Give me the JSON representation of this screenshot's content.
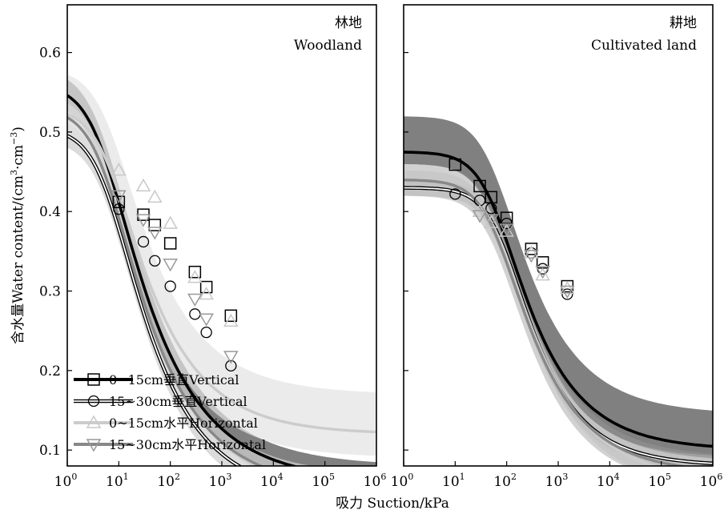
{
  "chart_data": [
    {
      "type": "line",
      "panel_label_cn": "林地",
      "panel_label_en": "Woodland",
      "xscale": "log",
      "xlim": [
        1,
        1000000
      ],
      "ylim": [
        0.08,
        0.66
      ],
      "series": [
        {
          "key": "a",
          "label": "0~15cm垂直Vertical",
          "color": "#000000",
          "stroke": "black",
          "marker": "square",
          "curve": {
            "theta_r": 0.06,
            "theta_s": 0.56,
            "alpha": 0.2,
            "n": 1.38
          },
          "band_color": "#555555",
          "band_opacity": 0.75,
          "band_low": 0.02,
          "band_high": 0.02,
          "band_start": "lower",
          "points": [
            {
              "x": 10,
              "y": 0.412
            },
            {
              "x": 30,
              "y": 0.396
            },
            {
              "x": 50,
              "y": 0.383
            },
            {
              "x": 100,
              "y": 0.36
            },
            {
              "x": 300,
              "y": 0.324
            },
            {
              "x": 500,
              "y": 0.305
            },
            {
              "x": 1500,
              "y": 0.269
            }
          ]
        },
        {
          "key": "b",
          "label": "15~30cm垂直Vertical",
          "color": "#000000",
          "stroke": "double",
          "marker": "circle",
          "curve": {
            "theta_r": 0.04,
            "theta_s": 0.505,
            "alpha": 0.16,
            "n": 1.42
          },
          "band_color": "#cccccc",
          "band_opacity": 0.7,
          "band_low": 0.015,
          "band_high": 0.015,
          "band_start": "lower",
          "points": [
            {
              "x": 10,
              "y": 0.403
            },
            {
              "x": 30,
              "y": 0.362
            },
            {
              "x": 50,
              "y": 0.338
            },
            {
              "x": 100,
              "y": 0.306
            },
            {
              "x": 300,
              "y": 0.271
            },
            {
              "x": 500,
              "y": 0.248
            },
            {
              "x": 1500,
              "y": 0.206
            }
          ]
        },
        {
          "key": "c",
          "label": "0~15cm水平Horizontal",
          "color": "#cccccc",
          "stroke": "gray",
          "marker": "triangle-up",
          "curve": {
            "theta_r": 0.12,
            "theta_s": 0.53,
            "alpha": 0.15,
            "n": 1.42
          },
          "band_color": "#e2e2e2",
          "band_opacity": 0.7,
          "band_low": 0.03,
          "band_high": 0.05,
          "band_start": "upper",
          "points": [
            {
              "x": 10,
              "y": 0.452
            },
            {
              "x": 30,
              "y": 0.432
            },
            {
              "x": 50,
              "y": 0.418
            },
            {
              "x": 100,
              "y": 0.385
            },
            {
              "x": 300,
              "y": 0.317
            },
            {
              "x": 500,
              "y": 0.296
            },
            {
              "x": 1500,
              "y": 0.262
            }
          ]
        },
        {
          "key": "d",
          "label": "15~30cm水平Horizontal",
          "color": "#888888",
          "stroke": "gray",
          "marker": "triangle-down",
          "curve": {
            "theta_r": 0.05,
            "theta_s": 0.53,
            "alpha": 0.18,
            "n": 1.4
          },
          "band_color": "#dddddd",
          "band_opacity": 0.6,
          "band_low": 0.018,
          "band_high": 0.018,
          "band_start": "upper",
          "points": [
            {
              "x": 10,
              "y": 0.42
            },
            {
              "x": 30,
              "y": 0.39
            },
            {
              "x": 50,
              "y": 0.374
            },
            {
              "x": 100,
              "y": 0.334
            },
            {
              "x": 300,
              "y": 0.29
            },
            {
              "x": 500,
              "y": 0.265
            },
            {
              "x": 1500,
              "y": 0.218
            }
          ]
        }
      ]
    },
    {
      "type": "line",
      "panel_label_cn": "耕地",
      "panel_label_en": "Cultivated land",
      "xscale": "log",
      "xlim": [
        1,
        1000000
      ],
      "ylim": [
        0.08,
        0.66
      ],
      "series": [
        {
          "key": "a",
          "label": "0~15cm垂直Vertical",
          "color": "#000000",
          "stroke": "black",
          "marker": "square",
          "curve": {
            "theta_r": 0.1,
            "theta_s": 0.475,
            "alpha": 0.017,
            "n": 1.45
          },
          "band_color": "#555555",
          "band_opacity": 0.75,
          "band_low": 0.015,
          "band_high": 0.045,
          "band_start": "lower",
          "points": [
            {
              "x": 10,
              "y": 0.459
            },
            {
              "x": 30,
              "y": 0.432
            },
            {
              "x": 50,
              "y": 0.418
            },
            {
              "x": 100,
              "y": 0.392
            },
            {
              "x": 300,
              "y": 0.353
            },
            {
              "x": 500,
              "y": 0.336
            },
            {
              "x": 1500,
              "y": 0.306
            }
          ]
        },
        {
          "key": "b",
          "label": "15~30cm垂直Vertical",
          "color": "#000000",
          "stroke": "double",
          "marker": "circle",
          "curve": {
            "theta_r": 0.08,
            "theta_s": 0.43,
            "alpha": 0.012,
            "n": 1.5
          },
          "band_color": "#cccccc",
          "band_opacity": 0.5,
          "band_low": 0.01,
          "band_high": 0.01,
          "band_start": "upper",
          "points": [
            {
              "x": 10,
              "y": 0.422
            },
            {
              "x": 30,
              "y": 0.414
            },
            {
              "x": 50,
              "y": 0.404
            },
            {
              "x": 100,
              "y": 0.385
            },
            {
              "x": 300,
              "y": 0.348
            },
            {
              "x": 500,
              "y": 0.328
            },
            {
              "x": 1500,
              "y": 0.296
            }
          ]
        },
        {
          "key": "c",
          "label": "0~15cm水平Horizontal",
          "color": "#cccccc",
          "stroke": "gray",
          "marker": "triangle-up",
          "curve": {
            "theta_r": 0.06,
            "theta_s": 0.44,
            "alpha": 0.015,
            "n": 1.42
          },
          "band_color": "#e2e2e2",
          "band_opacity": 0.6,
          "band_low": 0.012,
          "band_high": 0.012,
          "band_start": "upper",
          "points": [
            {
              "x": 30,
              "y": 0.4
            },
            {
              "x": 50,
              "y": 0.386
            },
            {
              "x": 100,
              "y": 0.375
            },
            {
              "x": 300,
              "y": 0.348
            },
            {
              "x": 500,
              "y": 0.32
            },
            {
              "x": 1500,
              "y": 0.303
            }
          ]
        },
        {
          "key": "d",
          "label": "15~30cm水平Horizontal",
          "color": "#888888",
          "stroke": "gray",
          "marker": "triangle-down",
          "curve": {
            "theta_r": 0.07,
            "theta_s": 0.44,
            "alpha": 0.016,
            "n": 1.44
          },
          "band_color": "#999999",
          "band_opacity": 0.45,
          "band_low": 0.02,
          "band_high": 0.02,
          "band_start": "lower",
          "points": [
            {
              "x": 30,
              "y": 0.395
            },
            {
              "x": 50,
              "y": 0.39
            },
            {
              "x": 100,
              "y": 0.378
            },
            {
              "x": 300,
              "y": 0.345
            },
            {
              "x": 500,
              "y": 0.325
            },
            {
              "x": 1500,
              "y": 0.3
            }
          ]
        }
      ]
    }
  ],
  "axes": {
    "y_label": "含水量Water content/(cm³·cm⁻³)",
    "y_label_prefix": "含水量Water content/(cm",
    "y_label_mid": "·cm",
    "y_label_suffix": ")",
    "y_label_sup1": "3",
    "y_label_sup2": "−3",
    "x_label": "吸力 Suction/kPa",
    "y_ticks": [
      "0.1",
      "0.2",
      "0.3",
      "0.4",
      "0.5",
      "0.6"
    ],
    "x_ticks": [
      {
        "base": "10",
        "exp": "0"
      },
      {
        "base": "10",
        "exp": "1"
      },
      {
        "base": "10",
        "exp": "2"
      },
      {
        "base": "10",
        "exp": "3"
      },
      {
        "base": "10",
        "exp": "4"
      },
      {
        "base": "10",
        "exp": "5"
      },
      {
        "base": "10",
        "exp": "6"
      }
    ]
  },
  "legend": {
    "placement": "bottom-left of left panel",
    "items": [
      "0~15cm垂直Vertical",
      "15~30cm垂直Vertical",
      "0~15cm水平Horizontal",
      "15~30cm水平Horizontal"
    ]
  }
}
